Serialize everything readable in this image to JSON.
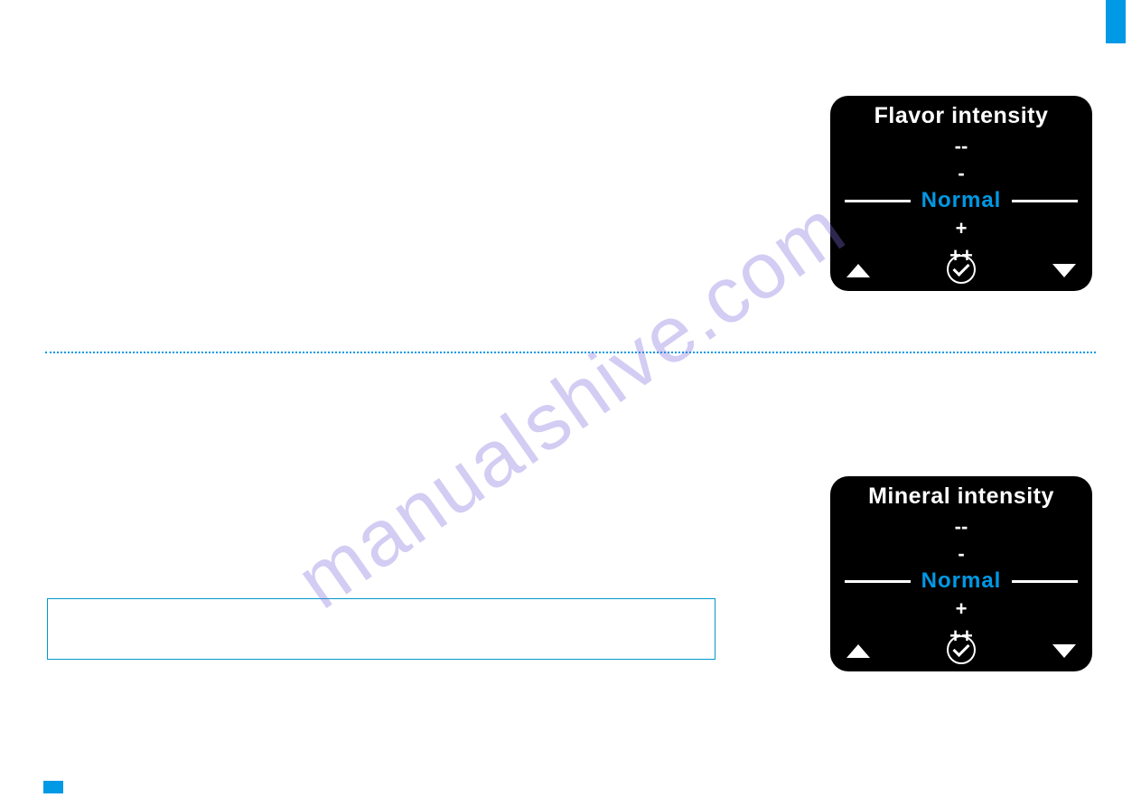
{
  "colors": {
    "accent": "#0099e5",
    "screen_bg": "#000000",
    "screen_text": "#ffffff",
    "selected": "#0099e5",
    "watermark": "rgba(130, 110, 220, 0.35)",
    "note_border": "#0099cc"
  },
  "watermark": "manualshive.com",
  "screens": {
    "flavor": {
      "title": "Flavor intensity",
      "options": [
        "--",
        "-",
        "Normal",
        "+",
        "++"
      ],
      "selected_index": 2
    },
    "mineral": {
      "title": "Mineral intensity",
      "options": [
        "--",
        "-",
        "Normal",
        "+",
        "++"
      ],
      "selected_index": 2
    }
  }
}
